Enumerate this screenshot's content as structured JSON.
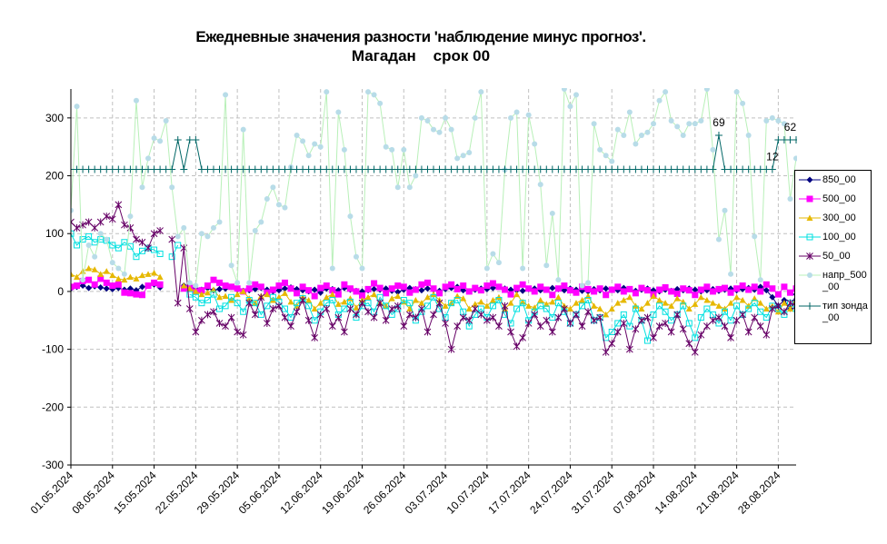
{
  "chart_data": {
    "type": "line",
    "title": "Ежедневные значения разности 'наблюдение минус прогноз'.",
    "subtitle": "Магадан    срок 00",
    "categories": [
      "01.05.2024",
      null,
      null,
      null,
      null,
      null,
      null,
      "08.05.2024",
      null,
      null,
      null,
      null,
      null,
      null,
      "15.05.2024",
      null,
      null,
      null,
      null,
      null,
      null,
      "22.05.2024",
      null,
      null,
      null,
      null,
      null,
      null,
      "29.05.2024",
      null,
      null,
      null,
      null,
      null,
      null,
      "05.06.2024",
      null,
      null,
      null,
      null,
      null,
      null,
      "12.06.2024",
      null,
      null,
      null,
      null,
      null,
      null,
      "19.06.2024",
      null,
      null,
      null,
      null,
      null,
      null,
      "26.06.2024",
      null,
      null,
      null,
      null,
      null,
      null,
      "03.07.2024",
      null,
      null,
      null,
      null,
      null,
      null,
      "10.07.2024",
      null,
      null,
      null,
      null,
      null,
      null,
      "17.07.2024",
      null,
      null,
      null,
      null,
      null,
      null,
      "24.07.2024",
      null,
      null,
      null,
      null,
      null,
      null,
      "31.07.2024",
      null,
      null,
      null,
      null,
      null,
      null,
      "07.08.2024",
      null,
      null,
      null,
      null,
      null,
      null,
      "14.08.2024",
      null,
      null,
      null,
      null,
      null,
      null,
      "21.08.2024",
      null,
      null,
      null,
      null,
      null,
      null,
      "28.08.2024",
      null,
      null,
      null
    ],
    "ylim": [
      -300,
      350
    ],
    "yticks": [
      -300,
      -200,
      -100,
      0,
      100,
      200,
      300
    ],
    "grid": true,
    "series": [
      {
        "name": "850_00",
        "color": "#000080",
        "marker": "diamond",
        "values": [
          5,
          8,
          10,
          6,
          9,
          7,
          5,
          4,
          6,
          3,
          5,
          2,
          8,
          10,
          12,
          7,
          null,
          null,
          null,
          10,
          8,
          5,
          3,
          6,
          2,
          4,
          5,
          8,
          3,
          1,
          2,
          4,
          6,
          3,
          0,
          2,
          5,
          7,
          4,
          2,
          0,
          3,
          -2,
          5,
          4,
          2,
          6,
          3,
          1,
          0,
          2,
          4,
          3,
          5,
          1,
          -1,
          3,
          6,
          4,
          2,
          5,
          3,
          1,
          4,
          6,
          8,
          2,
          0,
          3,
          5,
          4,
          6,
          8,
          5,
          3,
          2,
          1,
          4,
          5,
          2,
          3,
          6,
          4,
          2,
          5,
          3,
          1,
          0,
          4,
          2,
          5,
          3,
          2,
          6,
          4,
          1,
          3,
          5,
          2,
          0,
          3,
          1,
          4,
          2,
          5,
          3,
          0,
          2,
          4,
          1,
          3,
          5,
          2,
          4,
          6,
          3,
          8,
          2,
          -10,
          -25,
          -15,
          -30,
          -5
        ]
      },
      {
        "name": "500_00",
        "color": "#ff00ff",
        "marker": "square",
        "values": [
          8,
          10,
          18,
          20,
          12,
          22,
          15,
          10,
          12,
          -2,
          -3,
          -5,
          -6,
          10,
          15,
          12,
          null,
          null,
          null,
          5,
          6,
          0,
          2,
          10,
          20,
          15,
          10,
          8,
          5,
          0,
          5,
          12,
          8,
          -2,
          3,
          10,
          15,
          5,
          -3,
          8,
          2,
          -8,
          6,
          10,
          2,
          -5,
          12,
          5,
          0,
          -7,
          4,
          14,
          6,
          -3,
          5,
          10,
          8,
          -2,
          3,
          12,
          15,
          5,
          -3,
          8,
          12,
          4,
          10,
          0,
          6,
          2,
          10,
          14,
          8,
          3,
          -5,
          6,
          12,
          5,
          0,
          8,
          3,
          -6,
          5,
          10,
          2,
          -2,
          8,
          4,
          0,
          5,
          -6,
          3,
          8,
          0,
          4,
          -3,
          6,
          2,
          -5,
          3,
          7,
          0,
          -4,
          5,
          2,
          -6,
          3,
          8,
          0,
          4,
          6,
          -2,
          5,
          10,
          3,
          8,
          0,
          12,
          5,
          -5,
          8,
          -2,
          5
        ]
      },
      {
        "name": "300_00",
        "color": "#e6b800",
        "marker": "triangle",
        "values": [
          30,
          25,
          35,
          40,
          38,
          30,
          35,
          28,
          22,
          20,
          25,
          22,
          28,
          30,
          32,
          25,
          null,
          null,
          null,
          10,
          5,
          0,
          -5,
          -2,
          3,
          -10,
          -8,
          -15,
          -5,
          0,
          -12,
          -20,
          -8,
          -5,
          -15,
          -10,
          -3,
          -18,
          -25,
          -10,
          -15,
          -30,
          -20,
          -10,
          -5,
          -22,
          -18,
          -12,
          -28,
          -15,
          -10,
          -5,
          -20,
          -25,
          -12,
          -8,
          -18,
          -30,
          -15,
          -20,
          -10,
          -5,
          -15,
          -25,
          -20,
          -8,
          -12,
          -30,
          -22,
          -18,
          -25,
          -15,
          -10,
          -30,
          -20,
          -5,
          -18,
          -25,
          -28,
          -15,
          -22,
          -18,
          -10,
          -25,
          -30,
          -20,
          -15,
          -8,
          -25,
          -30,
          -40,
          -30,
          -20,
          -15,
          -10,
          -25,
          -30,
          -20,
          -8,
          -15,
          -20,
          -25,
          -12,
          -18,
          -30,
          -22,
          -10,
          -15,
          -20,
          -25,
          -30,
          -20,
          -10,
          -15,
          -25,
          -12,
          -20,
          -30,
          -25,
          -35,
          -20,
          -30,
          -15
        ]
      },
      {
        "name": "100_00",
        "color": "#00e0e0",
        "marker": "hollow-square",
        "values": [
          100,
          80,
          90,
          95,
          85,
          90,
          88,
          80,
          75,
          85,
          78,
          60,
          70,
          75,
          72,
          65,
          null,
          60,
          80,
          null,
          -5,
          -10,
          -20,
          -15,
          -5,
          -30,
          -25,
          -10,
          -20,
          -35,
          -15,
          -20,
          -40,
          -25,
          -10,
          -18,
          -30,
          -45,
          -20,
          -12,
          -25,
          -50,
          -35,
          -20,
          -15,
          -40,
          -30,
          -18,
          -45,
          -25,
          -20,
          -35,
          -10,
          -25,
          -40,
          -30,
          -15,
          -20,
          -50,
          -35,
          -25,
          -10,
          -30,
          -45,
          -20,
          -15,
          -35,
          -60,
          -40,
          -30,
          -45,
          -25,
          -15,
          -40,
          -55,
          -30,
          -20,
          -50,
          -35,
          -25,
          -30,
          -45,
          -20,
          -35,
          -55,
          -40,
          -25,
          -15,
          -50,
          -45,
          -80,
          -70,
          -55,
          -40,
          -60,
          -30,
          -50,
          -85,
          -40,
          -25,
          -35,
          -50,
          -40,
          -25,
          -55,
          -80,
          -45,
          -30,
          -40,
          -55,
          -35,
          -50,
          -25,
          -40,
          -30,
          -20,
          -35,
          -45,
          -25,
          -30,
          -40,
          -20,
          -30
        ]
      },
      {
        "name": "50_00",
        "color": "#660066",
        "marker": "star",
        "values": [
          120,
          110,
          115,
          120,
          110,
          120,
          130,
          125,
          150,
          115,
          110,
          90,
          85,
          75,
          100,
          105,
          null,
          90,
          -20,
          75,
          -30,
          -70,
          -50,
          -40,
          -35,
          -55,
          -60,
          -45,
          -70,
          -75,
          -20,
          -40,
          -10,
          -55,
          -30,
          -25,
          -45,
          -60,
          -35,
          -15,
          -50,
          -80,
          -40,
          -30,
          -60,
          -45,
          -70,
          -30,
          -40,
          -20,
          -35,
          -45,
          -20,
          -50,
          -30,
          -25,
          -60,
          -40,
          -45,
          -30,
          -70,
          -40,
          -20,
          -55,
          -100,
          -60,
          -45,
          -50,
          -30,
          -40,
          -50,
          -45,
          -60,
          -25,
          -70,
          -95,
          -80,
          -55,
          -40,
          -60,
          -50,
          -70,
          -45,
          -30,
          -55,
          -40,
          -60,
          -35,
          -50,
          -45,
          -105,
          -90,
          -70,
          -55,
          -100,
          -65,
          -50,
          -45,
          -80,
          -60,
          -55,
          -70,
          -40,
          -65,
          -90,
          -105,
          -75,
          -60,
          -50,
          -45,
          -60,
          -80,
          -50,
          -40,
          -70,
          -45,
          -60,
          -75,
          -30,
          -25,
          -35,
          -20,
          -25
        ]
      },
      {
        "name": "напр_500_00",
        "color": "#b8dce8",
        "line_color": "#b8f0b8",
        "marker": "circle",
        "values": [
          140,
          320,
          20,
          80,
          60,
          100,
          90,
          50,
          40,
          30,
          130,
          330,
          180,
          230,
          265,
          260,
          295,
          180,
          95,
          110,
          15,
          10,
          100,
          95,
          110,
          120,
          340,
          45,
          15,
          280,
          15,
          105,
          120,
          160,
          180,
          150,
          145,
          215,
          270,
          260,
          235,
          255,
          250,
          345,
          40,
          310,
          245,
          130,
          60,
          40,
          345,
          340,
          325,
          250,
          245,
          180,
          245,
          180,
          200,
          300,
          295,
          280,
          275,
          300,
          280,
          230,
          235,
          240,
          300,
          345,
          40,
          65,
          50,
          210,
          300,
          310,
          40,
          305,
          255,
          185,
          45,
          135,
          20,
          350,
          320,
          340,
          10,
          15,
          290,
          245,
          235,
          225,
          280,
          270,
          310,
          255,
          270,
          275,
          290,
          330,
          345,
          295,
          285,
          270,
          290,
          290,
          295,
          350,
          245,
          90,
          140,
          30,
          345,
          325,
          270,
          95,
          20,
          295,
          300,
          295,
          290,
          160,
          230
        ]
      },
      {
        "name": "тип зонда_00",
        "color": "#006666",
        "marker": "plus",
        "values": [
          211,
          211,
          211,
          211,
          211,
          211,
          211,
          211,
          211,
          211,
          211,
          211,
          211,
          211,
          211,
          211,
          211,
          211,
          262,
          211,
          262,
          262,
          211,
          211,
          211,
          211,
          211,
          211,
          211,
          211,
          211,
          211,
          211,
          211,
          211,
          211,
          211,
          211,
          211,
          211,
          211,
          211,
          211,
          211,
          211,
          211,
          211,
          211,
          211,
          211,
          211,
          211,
          211,
          211,
          211,
          211,
          211,
          211,
          211,
          211,
          211,
          211,
          211,
          211,
          211,
          211,
          211,
          211,
          211,
          211,
          211,
          211,
          211,
          211,
          211,
          211,
          211,
          211,
          211,
          211,
          211,
          211,
          211,
          211,
          211,
          211,
          211,
          211,
          211,
          211,
          211,
          211,
          211,
          211,
          211,
          211,
          211,
          211,
          211,
          211,
          211,
          211,
          211,
          211,
          211,
          211,
          211,
          211,
          211,
          270,
          211,
          211,
          211,
          211,
          211,
          211,
          211,
          211,
          211,
          262,
          262,
          262,
          262
        ],
        "annotations": [
          {
            "text": "69",
            "index": 109
          },
          {
            "text": "12",
            "index": 118
          },
          {
            "text": "62",
            "index": 121
          }
        ]
      }
    ]
  }
}
